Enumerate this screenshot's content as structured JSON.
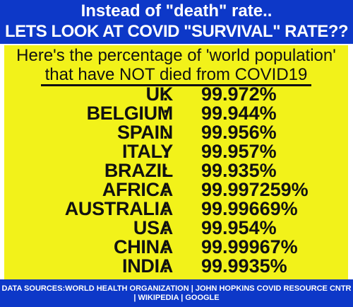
{
  "header": {
    "line1": "Instead of \"death\" rate..",
    "line2": "LETS LOOK AT COVID \"SURVIVAL\" RATE??"
  },
  "subtitle": {
    "line1": "Here's the percentage of 'world population'",
    "line2": "that have NOT died from COVID19"
  },
  "rows": [
    {
      "country": "UK",
      "value": "99.972%"
    },
    {
      "country": "BELGIUM",
      "value": "99.944%"
    },
    {
      "country": "SPAIN",
      "value": "99.956%"
    },
    {
      "country": "ITALY",
      "value": "99.957%"
    },
    {
      "country": "BRAZIL",
      "value": "99.935%"
    },
    {
      "country": "AFRICA",
      "value": "99.997259%"
    },
    {
      "country": "AUSTRALIA",
      "value": "99.99669%"
    },
    {
      "country": "USA",
      "value": "99.954%"
    },
    {
      "country": "CHINA",
      "value": "99.99967%"
    },
    {
      "country": "INDIA",
      "value": "99.9935%"
    }
  ],
  "footer": {
    "line1": "DATA SOURCES:WORLD HEALTH ORGANIZATION | JOHN HOPKINS COVID RESOURCE CNTR",
    "line2": "| WIKIPEDIA | GOOGLE"
  },
  "colors": {
    "banner": "#0d38c8",
    "panel": "#f2f21a",
    "text_dark": "#111111",
    "text_light": "#ffffff"
  }
}
